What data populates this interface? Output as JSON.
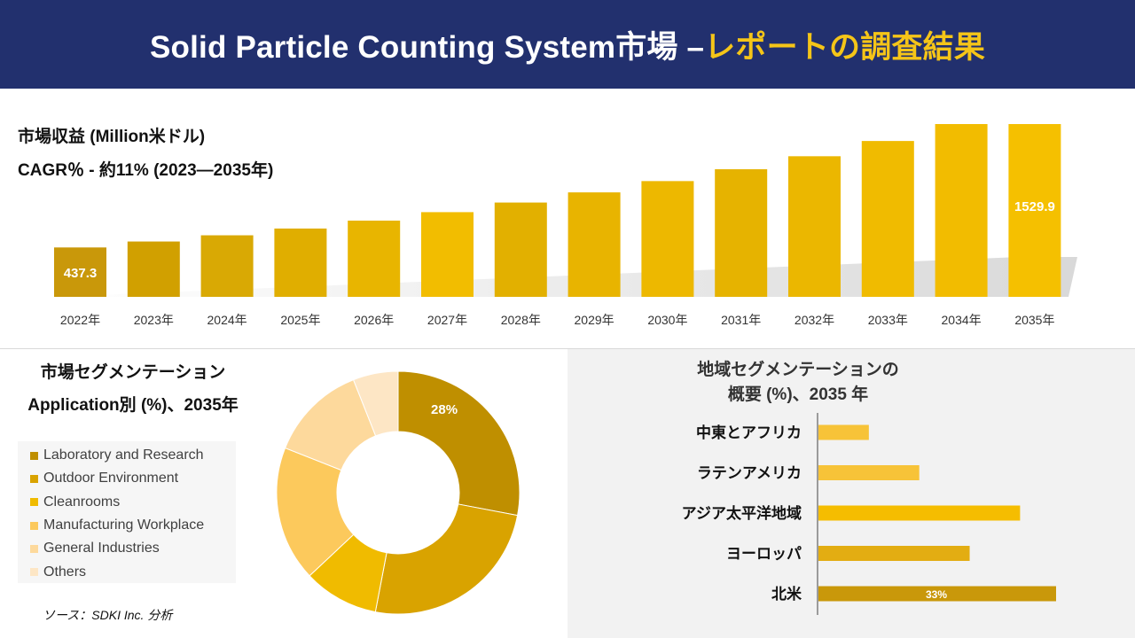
{
  "header": {
    "title_main": "Solid Particle Counting System市場 –",
    "title_accent": "レポートの調査結果"
  },
  "revenue": {
    "label": "市場収益 (Million米ドル)",
    "cagr": "CAGR％ - 約11% (2023—2035年)"
  },
  "segment": {
    "title_line1": "市場セグメンテーション",
    "title_line2": "Application別 (%)、2035年"
  },
  "region": {
    "title_line1": "地域セグメンテーションの",
    "title_line2": "概要 (%)、2035 年"
  },
  "source": "ソース：SDKI Inc. 分析",
  "colors": {
    "header_bg": "#22306e",
    "accent": "#f5c518",
    "bars": [
      "#c9980a",
      "#d1a000",
      "#d9a904",
      "#e0ae00",
      "#e8b500",
      "#f2bd00",
      "#e2b000",
      "#e8b400",
      "#edb800",
      "#e6b300",
      "#ebb700",
      "#f0bb00",
      "#f2bc00",
      "#f5c000"
    ]
  },
  "chart_data": [
    {
      "type": "bar",
      "categories": [
        "2022年",
        "2023年",
        "2024年",
        "2025年",
        "2026年",
        "2027年",
        "2028年",
        "2029年",
        "2030年",
        "2031年",
        "2032年",
        "2033年",
        "2034年",
        "2035年"
      ],
      "values": [
        437.3,
        490,
        545,
        605,
        675,
        750,
        835,
        925,
        1025,
        1130,
        1245,
        1380,
        1530,
        1529.9
      ],
      "value_labels": [
        "437.3",
        "",
        "",
        "",
        "",
        "",
        "",
        "",
        "",
        "",
        "",
        "",
        "",
        "1529.9"
      ],
      "title": "市場収益 (Million米ドル)",
      "subtitle": "CAGR％ - 約11% (2023—2035年)"
    },
    {
      "type": "pie",
      "labels": [
        "Laboratory and Research",
        "Outdoor Environment",
        "Cleanrooms",
        "Manufacturing Workplace",
        "General Industries",
        "Others"
      ],
      "values": [
        28,
        25,
        10,
        18,
        13,
        6
      ],
      "value_labels": [
        "28%",
        "",
        "",
        "",
        "",
        ""
      ],
      "colors": [
        "#bf8f00",
        "#d9a300",
        "#f0bb00",
        "#fcc95c",
        "#fdd99c",
        "#fde6c5"
      ],
      "title": "Application別 (%)、2035年"
    },
    {
      "type": "bar",
      "orientation": "horizontal",
      "categories": [
        "中東とアフリカ",
        "ラテンアメリカ",
        "アジア太平洋地域",
        "ヨーロッパ",
        "北米"
      ],
      "values": [
        7,
        14,
        28,
        21,
        33
      ],
      "value_labels": [
        "",
        "",
        "",
        "",
        "33%"
      ],
      "colors": [
        "#f7c338",
        "#f7c338",
        "#f5bd00",
        "#e3ad12",
        "#c9980a"
      ],
      "title": "地域セグメンテーションの概要 (%)、2035 年"
    }
  ]
}
